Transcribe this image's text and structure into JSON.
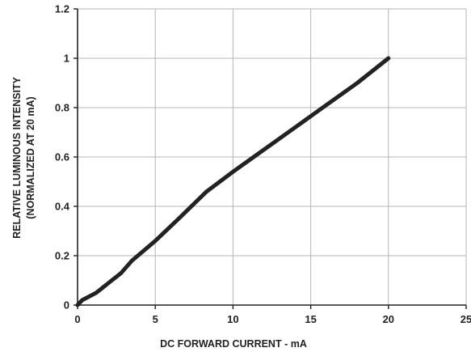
{
  "chart_data": {
    "type": "line",
    "xlabel": "DC FORWARD CURRENT - mA",
    "ylabel_lines": [
      "RELATIVE LUMINOUS INTENSITY",
      "(NORMALIZED AT 20 mA)"
    ],
    "xlim": [
      0,
      25
    ],
    "ylim": [
      0,
      1.2
    ],
    "x_ticks": [
      0,
      5,
      10,
      15,
      20,
      25
    ],
    "x_tick_labels": [
      "0",
      "5",
      "10",
      "15",
      "20",
      "25"
    ],
    "y_ticks": [
      0,
      0.2,
      0.4,
      0.6,
      0.8,
      1,
      1.2
    ],
    "y_tick_labels": [
      "0",
      "0.2",
      "0.4",
      "0.6",
      "0.8",
      "1",
      "1.2"
    ],
    "grid": true,
    "series": [
      {
        "x": [
          0,
          0.3,
          1.2,
          2.0,
          2.8,
          3.5,
          5.0,
          6.5,
          8.3,
          10.0,
          12.0,
          14.0,
          16.0,
          18.0,
          20.0
        ],
        "y": [
          0,
          0.02,
          0.05,
          0.09,
          0.13,
          0.18,
          0.26,
          0.35,
          0.46,
          0.54,
          0.63,
          0.72,
          0.81,
          0.9,
          1.0
        ],
        "color": "#222222"
      }
    ]
  }
}
